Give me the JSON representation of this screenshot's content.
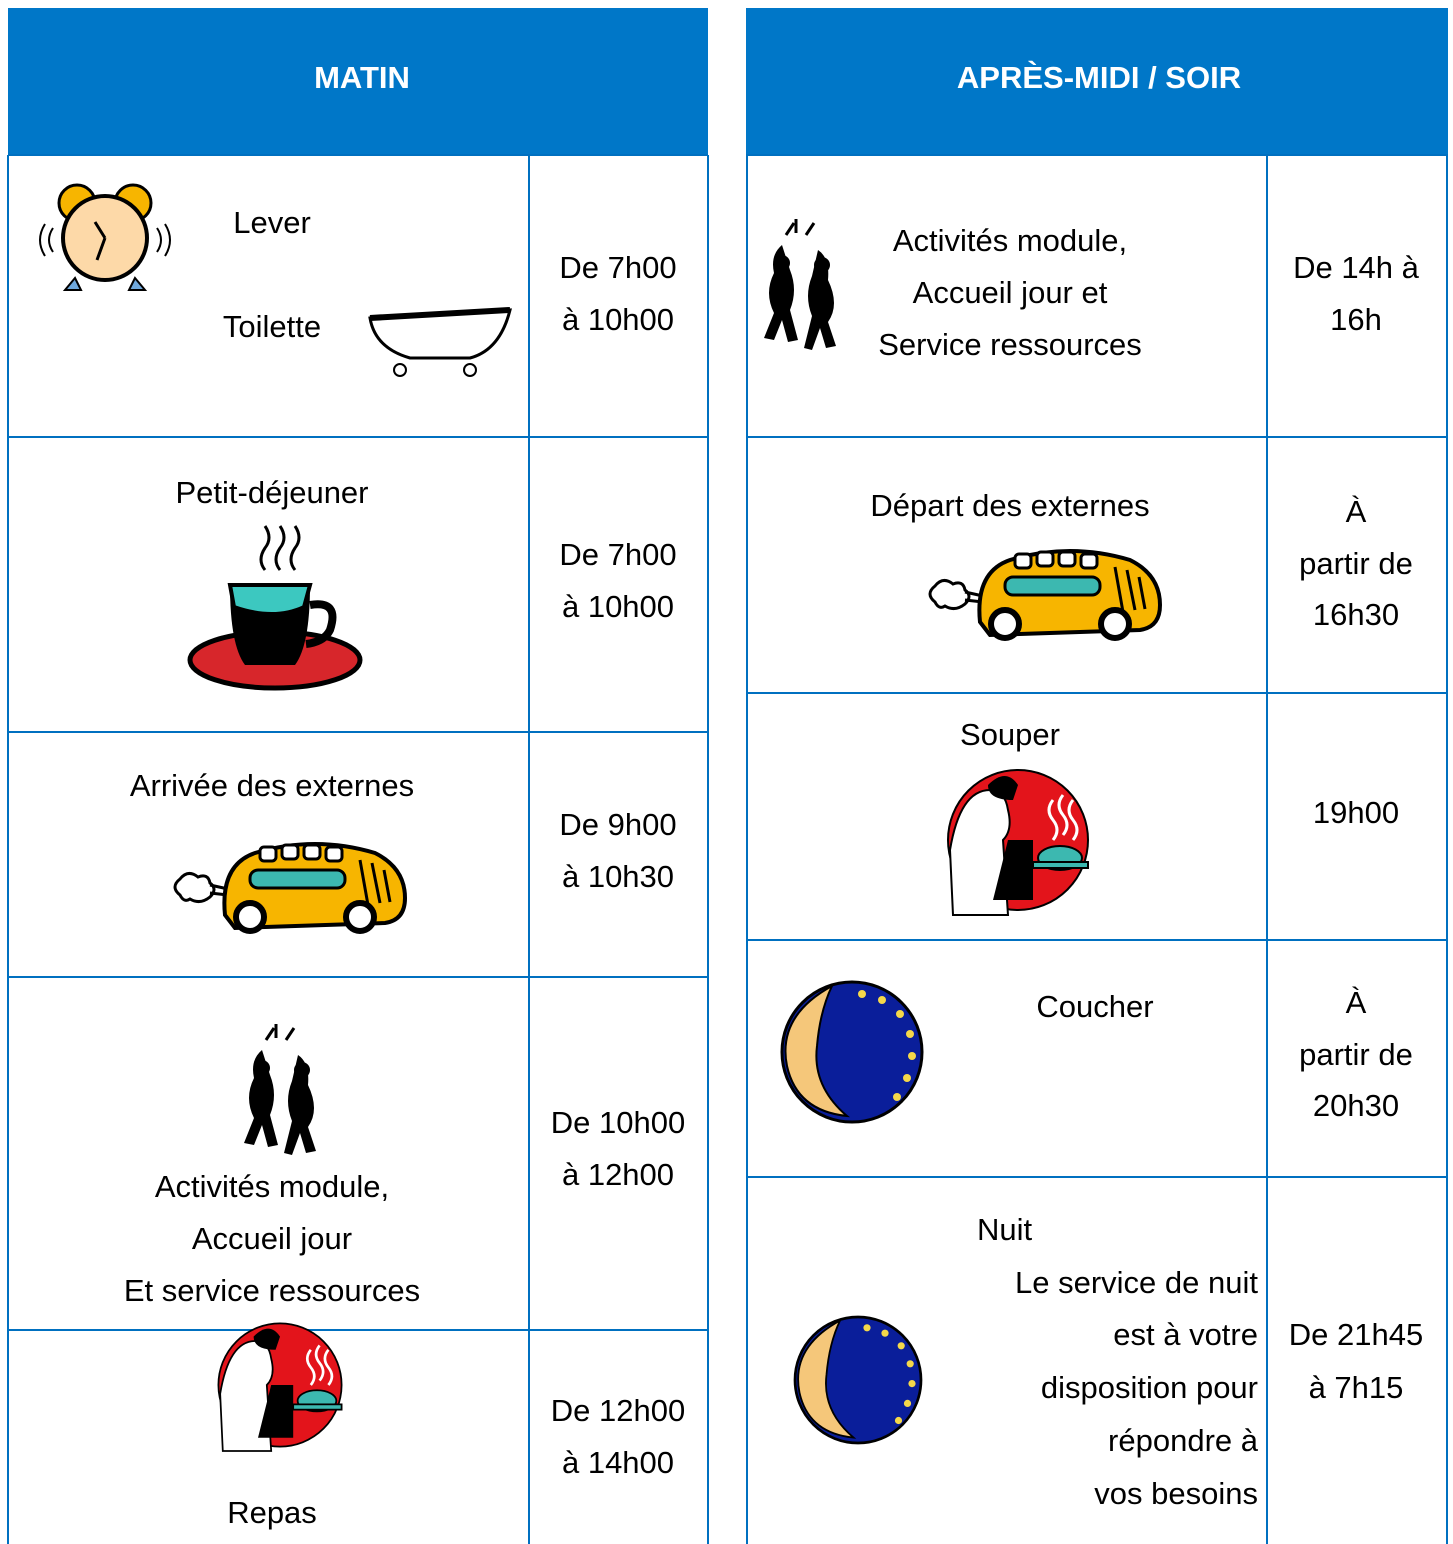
{
  "tables": [
    {
      "header": "MATIN",
      "rows": [
        {
          "activity": [
            "Lever",
            "Toilette"
          ],
          "time": [
            "De 7h00",
            "à 10h00"
          ]
        },
        {
          "activity": [
            "Petit-déjeuner"
          ],
          "time": [
            "De 7h00",
            "à 10h00"
          ]
        },
        {
          "activity": [
            "Arrivée des externes"
          ],
          "time": [
            "De 9h00",
            "à 10h30"
          ]
        },
        {
          "activity": [
            "Activités module,",
            "Accueil jour",
            "Et service ressources"
          ],
          "time": [
            "De 10h00",
            "à 12h00"
          ]
        },
        {
          "activity": [
            "Repas"
          ],
          "time": [
            "De 12h00",
            "à 14h00"
          ]
        }
      ]
    },
    {
      "header": "APRÈS-MIDI / SOIR",
      "rows": [
        {
          "activity": [
            "Activités module,",
            "Accueil jour et",
            "Service ressources"
          ],
          "time": [
            "De 14h à",
            "16h"
          ]
        },
        {
          "activity": [
            "Départ des externes"
          ],
          "time": [
            "À",
            "partir de",
            "16h30"
          ]
        },
        {
          "activity": [
            "Souper"
          ],
          "time": [
            "19h00"
          ]
        },
        {
          "activity": [
            "Coucher"
          ],
          "time": [
            "À",
            "partir de",
            "20h30"
          ]
        },
        {
          "activity": [
            "Nuit",
            "Le service de nuit",
            "est à votre",
            "disposition pour",
            "répondre à",
            "vos besoins"
          ],
          "time": [
            "De 21h45",
            "à 7h15"
          ]
        }
      ]
    }
  ]
}
